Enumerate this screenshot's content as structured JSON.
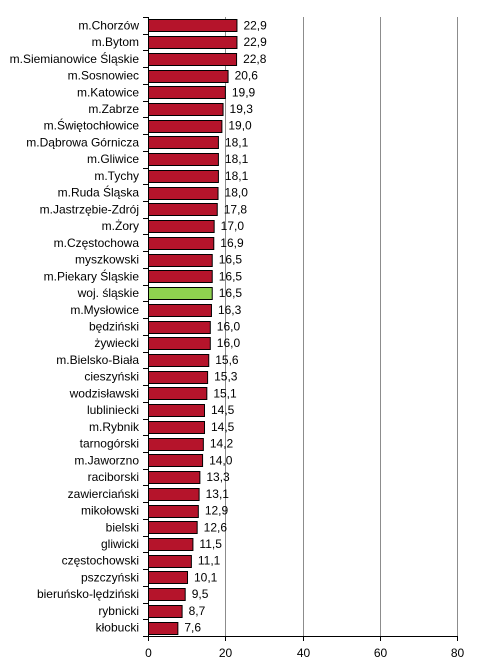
{
  "chart_data": {
    "type": "bar",
    "orientation": "horizontal",
    "title": "",
    "xlabel": "",
    "ylabel": "",
    "xlim": [
      0,
      80
    ],
    "xticks": [
      "0",
      "20",
      "40",
      "60",
      "80"
    ],
    "grid": "vertical major gridlines",
    "legend": "none",
    "colors": {
      "bar": "#b5142b",
      "highlight": "#8fd14f",
      "bar_border": "#000000"
    },
    "highlight_category": "woj. śląskie",
    "categories": [
      "m.Chorzów",
      "m.Bytom",
      "m.Siemianowice Śląskie",
      "m.Sosnowiec",
      "m.Katowice",
      "m.Zabrze",
      "m.Świętochłowice",
      "m.Dąbrowa Górnicza",
      "m.Gliwice",
      "m.Tychy",
      "m.Ruda Śląska",
      "m.Jastrzębie-Zdrój",
      "m.Żory",
      "m.Częstochowa",
      "myszkowski",
      "m.Piekary Śląskie",
      "woj. śląskie",
      "m.Mysłowice",
      "będziński",
      "żywiecki",
      "m.Bielsko-Biała",
      "cieszyński",
      "wodzisławski",
      "lubliniecki",
      "m.Rybnik",
      "tarnogórski",
      "m.Jaworzno",
      "raciborski",
      "zawierciański",
      "mikołowski",
      "bielski",
      "gliwicki",
      "częstochowski",
      "pszczyński",
      "bieruńsko-lędziński",
      "rybnicki",
      "kłobucki"
    ],
    "values": [
      22.9,
      22.9,
      22.8,
      20.6,
      19.9,
      19.3,
      19.0,
      18.1,
      18.1,
      18.1,
      18.0,
      17.8,
      17.0,
      16.9,
      16.5,
      16.5,
      16.5,
      16.3,
      16.0,
      16.0,
      15.6,
      15.3,
      15.1,
      14.5,
      14.5,
      14.2,
      14.0,
      13.3,
      13.1,
      12.9,
      12.6,
      11.5,
      11.1,
      10.1,
      9.5,
      8.7,
      7.6
    ],
    "value_labels": [
      "22,9",
      "22,9",
      "22,8",
      "20,6",
      "19,9",
      "19,3",
      "19,0",
      "18,1",
      "18,1",
      "18,1",
      "18,0",
      "17,8",
      "17,0",
      "16,9",
      "16,5",
      "16,5",
      "16,5",
      "16,3",
      "16,0",
      "16,0",
      "15,6",
      "15,3",
      "15,1",
      "14,5",
      "14,5",
      "14,2",
      "14,0",
      "13,3",
      "13,1",
      "12,9",
      "12,6",
      "11,5",
      "11,1",
      "10,1",
      "9,5",
      "8,7",
      "7,6"
    ]
  }
}
